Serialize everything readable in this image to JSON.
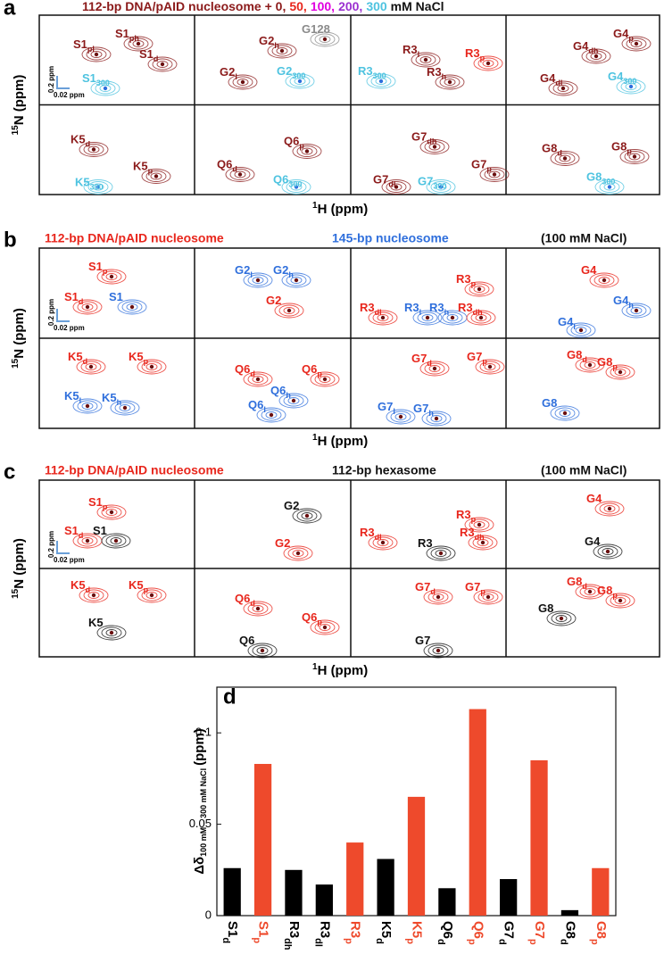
{
  "panels": [
    {
      "letter": "a",
      "title": [
        {
          "text": "112-bp DNA/pAID nucleosome + 0,",
          "color": "#8b1a1a"
        },
        {
          "text": "50,",
          "color": "#e8261c"
        },
        {
          "text": "100,",
          "color": "#e000e0"
        },
        {
          "text": "200,",
          "color": "#9b30d0"
        },
        {
          "text": "300",
          "color": "#4ec3e0"
        },
        {
          "text": "mM NaCl",
          "color": "#111111"
        }
      ],
      "cells": [
        [
          {
            "text": "S1",
            "sub": "pl",
            "color": "#8b1a1a"
          },
          {
            "text": "S1",
            "sub": "ph",
            "color": "#8b1a1a"
          },
          {
            "text": "S1",
            "sub": "d",
            "color": "#8b1a1a"
          },
          {
            "text": "S1",
            "sub": "300",
            "color": "#4ec3e0"
          }
        ],
        [
          {
            "text": "G2",
            "sub": "h",
            "color": "#8b1a1a"
          },
          {
            "text": "G128",
            "color": "#8a8a8a"
          },
          {
            "text": "G2",
            "sub": "l",
            "color": "#8b1a1a"
          },
          {
            "text": "G2",
            "sub": "300",
            "color": "#4ec3e0"
          }
        ],
        [
          {
            "text": "R3",
            "sub": "l",
            "color": "#8b1a1a"
          },
          {
            "text": "R3",
            "sub": "p",
            "color": "#e8261c"
          },
          {
            "text": "R3",
            "sub": "300",
            "color": "#4ec3e0"
          },
          {
            "text": "R3",
            "sub": "h",
            "color": "#8b1a1a"
          }
        ],
        [
          {
            "text": "G4",
            "sub": "dh",
            "color": "#8b1a1a"
          },
          {
            "text": "G4",
            "sub": "p",
            "color": "#8b1a1a"
          },
          {
            "text": "G4",
            "sub": "dl",
            "color": "#8b1a1a"
          },
          {
            "text": "G4",
            "sub": "300",
            "color": "#4ec3e0"
          }
        ],
        [
          {
            "text": "K5",
            "sub": "d",
            "color": "#8b1a1a"
          },
          {
            "text": "K5",
            "sub": "p",
            "color": "#8b1a1a"
          },
          {
            "text": "K5",
            "sub": "300",
            "color": "#4ec3e0"
          }
        ],
        [
          {
            "text": "Q6",
            "sub": "p",
            "color": "#8b1a1a"
          },
          {
            "text": "Q6",
            "sub": "d",
            "color": "#8b1a1a"
          },
          {
            "text": "Q6",
            "sub": "300",
            "color": "#4ec3e0"
          }
        ],
        [
          {
            "text": "G7",
            "sub": "dh",
            "color": "#8b1a1a"
          },
          {
            "text": "G7",
            "sub": "p",
            "color": "#8b1a1a"
          },
          {
            "text": "G7",
            "sub": "dl",
            "color": "#8b1a1a"
          },
          {
            "text": "G7",
            "sub": "300",
            "color": "#4ec3e0"
          }
        ],
        [
          {
            "text": "G8",
            "sub": "d",
            "color": "#8b1a1a"
          },
          {
            "text": "G8",
            "sub": "p",
            "color": "#8b1a1a"
          },
          {
            "text": "G8",
            "sub": "300",
            "color": "#4ec3e0"
          }
        ]
      ],
      "scale": [
        "0.2 ppm",
        "0.02 ppm"
      ],
      "xlabel": {
        "sup": "1",
        "main": "H (ppm)"
      },
      "ylabel": {
        "sup": "15",
        "main": "N (ppm)"
      }
    },
    {
      "letter": "b",
      "title": [
        {
          "text": "112-bp DNA/pAID nucleosome",
          "color": "#e8261c"
        },
        {
          "text": "145-bp nucleosome",
          "color": "#2f6fdc"
        },
        {
          "text": "(100 mM NaCl)",
          "color": "#111111"
        }
      ],
      "cells": [
        [
          {
            "text": "S1",
            "sub": "p",
            "color": "#e8261c"
          },
          {
            "text": "S1",
            "sub": "d",
            "color": "#e8261c"
          },
          {
            "text": "S1",
            "color": "#2f6fdc"
          }
        ],
        [
          {
            "text": "G2",
            "sub": "l",
            "color": "#2f6fdc"
          },
          {
            "text": "G2",
            "sub": "h",
            "color": "#2f6fdc"
          },
          {
            "text": "G2",
            "color": "#e8261c"
          }
        ],
        [
          {
            "text": "R3",
            "sub": "p",
            "color": "#e8261c"
          },
          {
            "text": "R3",
            "sub": "dl",
            "color": "#e8261c"
          },
          {
            "text": "R3",
            "sub": "l",
            "color": "#2f6fdc"
          },
          {
            "text": "R3",
            "sub": "h",
            "color": "#2f6fdc"
          },
          {
            "text": "R3",
            "sub": "dh",
            "color": "#e8261c"
          }
        ],
        [
          {
            "text": "G4",
            "color": "#e8261c"
          },
          {
            "text": "G4",
            "sub": "h",
            "color": "#2f6fdc"
          },
          {
            "text": "G4",
            "sub": "l",
            "color": "#2f6fdc"
          }
        ],
        [
          {
            "text": "K5",
            "sub": "d",
            "color": "#e8261c"
          },
          {
            "text": "K5",
            "sub": "p",
            "color": "#e8261c"
          },
          {
            "text": "K5",
            "sub": "l",
            "color": "#2f6fdc"
          },
          {
            "text": "K5",
            "sub": "h",
            "color": "#2f6fdc"
          }
        ],
        [
          {
            "text": "Q6",
            "sub": "d",
            "color": "#e8261c"
          },
          {
            "text": "Q6",
            "sub": "p",
            "color": "#e8261c"
          },
          {
            "text": "Q6",
            "sub": "h",
            "color": "#2f6fdc"
          },
          {
            "text": "Q6",
            "sub": "l",
            "color": "#2f6fdc"
          }
        ],
        [
          {
            "text": "G7",
            "sub": "d",
            "color": "#e8261c"
          },
          {
            "text": "G7",
            "sub": "p",
            "color": "#e8261c"
          },
          {
            "text": "G7",
            "sub": "l",
            "color": "#2f6fdc"
          },
          {
            "text": "G7",
            "sub": "h",
            "color": "#2f6fdc"
          }
        ],
        [
          {
            "text": "G8",
            "sub": "d",
            "color": "#e8261c"
          },
          {
            "text": "G8",
            "sub": "p",
            "color": "#e8261c"
          },
          {
            "text": "G8",
            "color": "#2f6fdc"
          }
        ]
      ],
      "scale": [
        "0.2 ppm",
        "0.02 ppm"
      ],
      "xlabel": {
        "sup": "1",
        "main": "H (ppm)"
      },
      "ylabel": {
        "sup": "15",
        "main": "N (ppm)"
      }
    },
    {
      "letter": "c",
      "title": [
        {
          "text": "112-bp DNA/pAID nucleosome",
          "color": "#e8261c"
        },
        {
          "text": "112-bp hexasome",
          "color": "#111111"
        },
        {
          "text": "(100 mM NaCl)",
          "color": "#111111"
        }
      ],
      "cells": [
        [
          {
            "text": "S1",
            "sub": "p",
            "color": "#e8261c"
          },
          {
            "text": "S1",
            "sub": "d",
            "color": "#e8261c"
          },
          {
            "text": "S1",
            "color": "#111111"
          }
        ],
        [
          {
            "text": "G2",
            "color": "#111111"
          },
          {
            "text": "G2",
            "color": "#e8261c"
          }
        ],
        [
          {
            "text": "R3",
            "sub": "p",
            "color": "#e8261c"
          },
          {
            "text": "R3",
            "sub": "dl",
            "color": "#e8261c"
          },
          {
            "text": "R3",
            "color": "#111111"
          },
          {
            "text": "R3",
            "sub": "dh",
            "color": "#e8261c"
          }
        ],
        [
          {
            "text": "G4",
            "color": "#e8261c"
          },
          {
            "text": "G4",
            "color": "#111111"
          }
        ],
        [
          {
            "text": "K5",
            "sub": "d",
            "color": "#e8261c"
          },
          {
            "text": "K5",
            "sub": "p",
            "color": "#e8261c"
          },
          {
            "text": "K5",
            "color": "#111111"
          }
        ],
        [
          {
            "text": "Q6",
            "sub": "d",
            "color": "#e8261c"
          },
          {
            "text": "Q6",
            "sub": "p",
            "color": "#e8261c"
          },
          {
            "text": "Q6",
            "color": "#111111"
          }
        ],
        [
          {
            "text": "G7",
            "sub": "d",
            "color": "#e8261c"
          },
          {
            "text": "G7",
            "sub": "p",
            "color": "#e8261c"
          },
          {
            "text": "G7",
            "color": "#111111"
          }
        ],
        [
          {
            "text": "G8",
            "sub": "d",
            "color": "#e8261c"
          },
          {
            "text": "G8",
            "sub": "p",
            "color": "#e8261c"
          },
          {
            "text": "G8",
            "color": "#111111"
          }
        ]
      ],
      "scale": [
        "0.2 ppm",
        "0.02 ppm"
      ],
      "xlabel": {
        "sup": "1",
        "main": "H (ppm)"
      },
      "ylabel": {
        "sup": "15",
        "main": "N (ppm)"
      }
    }
  ],
  "chart_data": {
    "type": "bar",
    "letter": "d",
    "ylabel": {
      "main": "Δδ",
      "sub": "100 mM – 300 mM NaCl",
      "unit": "(ppm)"
    },
    "categories": [
      "S1",
      "S1",
      "R3",
      "R3",
      "R3",
      "K5",
      "K5",
      "Q6",
      "Q6",
      "G7",
      "G7",
      "G8",
      "G8"
    ],
    "category_subscripts": [
      "d",
      "p",
      "dh",
      "dl",
      "p",
      "d",
      "p",
      "d",
      "p",
      "d",
      "p",
      "d",
      "p"
    ],
    "values": [
      0.026,
      0.083,
      0.025,
      0.017,
      0.04,
      0.031,
      0.065,
      0.015,
      0.113,
      0.02,
      0.085,
      0.003,
      0.026
    ],
    "colors": [
      "#000000",
      "#ee4a2c",
      "#000000",
      "#000000",
      "#ee4a2c",
      "#000000",
      "#ee4a2c",
      "#000000",
      "#ee4a2c",
      "#000000",
      "#ee4a2c",
      "#000000",
      "#ee4a2c"
    ],
    "ylim": [
      0,
      0.125
    ],
    "yticks": [
      0,
      0.05,
      0.1
    ]
  }
}
